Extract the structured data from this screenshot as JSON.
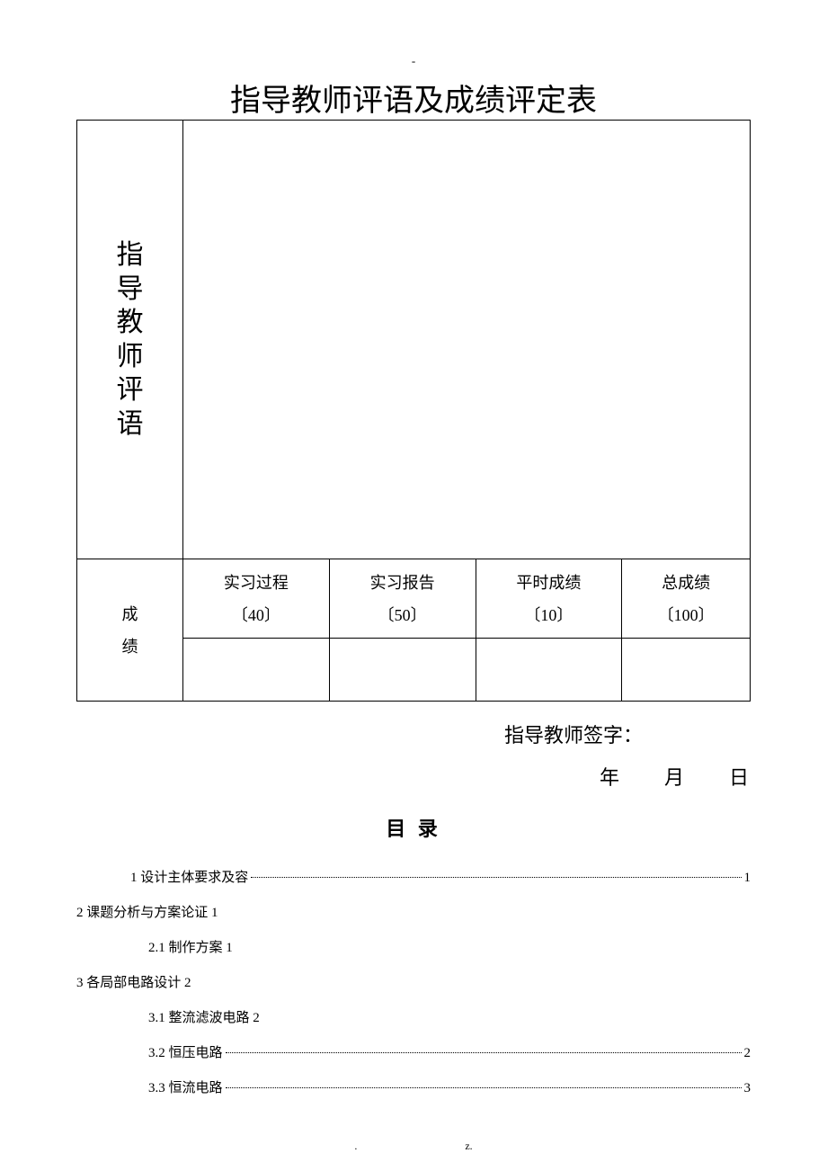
{
  "header_marker": "-",
  "title": "指导教师评语及成绩评定表",
  "table": {
    "comment_label_chars": [
      "指",
      "导",
      "教",
      "师",
      "评",
      "语"
    ],
    "score_label_chars": [
      "成",
      "绩"
    ],
    "score_columns": [
      {
        "header": "实习过程",
        "weight": "〔40〕",
        "value": ""
      },
      {
        "header": "实习报告",
        "weight": "〔50〕",
        "value": ""
      },
      {
        "header": "平时成绩",
        "weight": "〔10〕",
        "value": ""
      },
      {
        "header": "总成绩",
        "weight": "〔100〕",
        "value": ""
      }
    ]
  },
  "signature": {
    "label": "指导教师签字：",
    "date": "年  月  日"
  },
  "toc": {
    "title": "目 录",
    "entries": [
      {
        "text": "1 设计主体要求及容",
        "page": "1",
        "indent": 1,
        "dotted": true
      },
      {
        "text": "2 课题分析与方案论证 1",
        "page": "",
        "indent": 0,
        "dotted": false
      },
      {
        "text": "2.1 制作方案 1",
        "page": "",
        "indent": 2,
        "dotted": false
      },
      {
        "text": "3 各局部电路设计 2",
        "page": "",
        "indent": 0,
        "dotted": false
      },
      {
        "text": "3.1 整流滤波电路 2",
        "page": "",
        "indent": 2,
        "dotted": false
      },
      {
        "text": "3.2 恒压电路",
        "page": "2",
        "indent": 2,
        "dotted": true
      },
      {
        "text": "3.3 恒流电路",
        "page": "3",
        "indent": 2,
        "dotted": true
      }
    ]
  },
  "footer": {
    "left": ".",
    "right": "z."
  }
}
